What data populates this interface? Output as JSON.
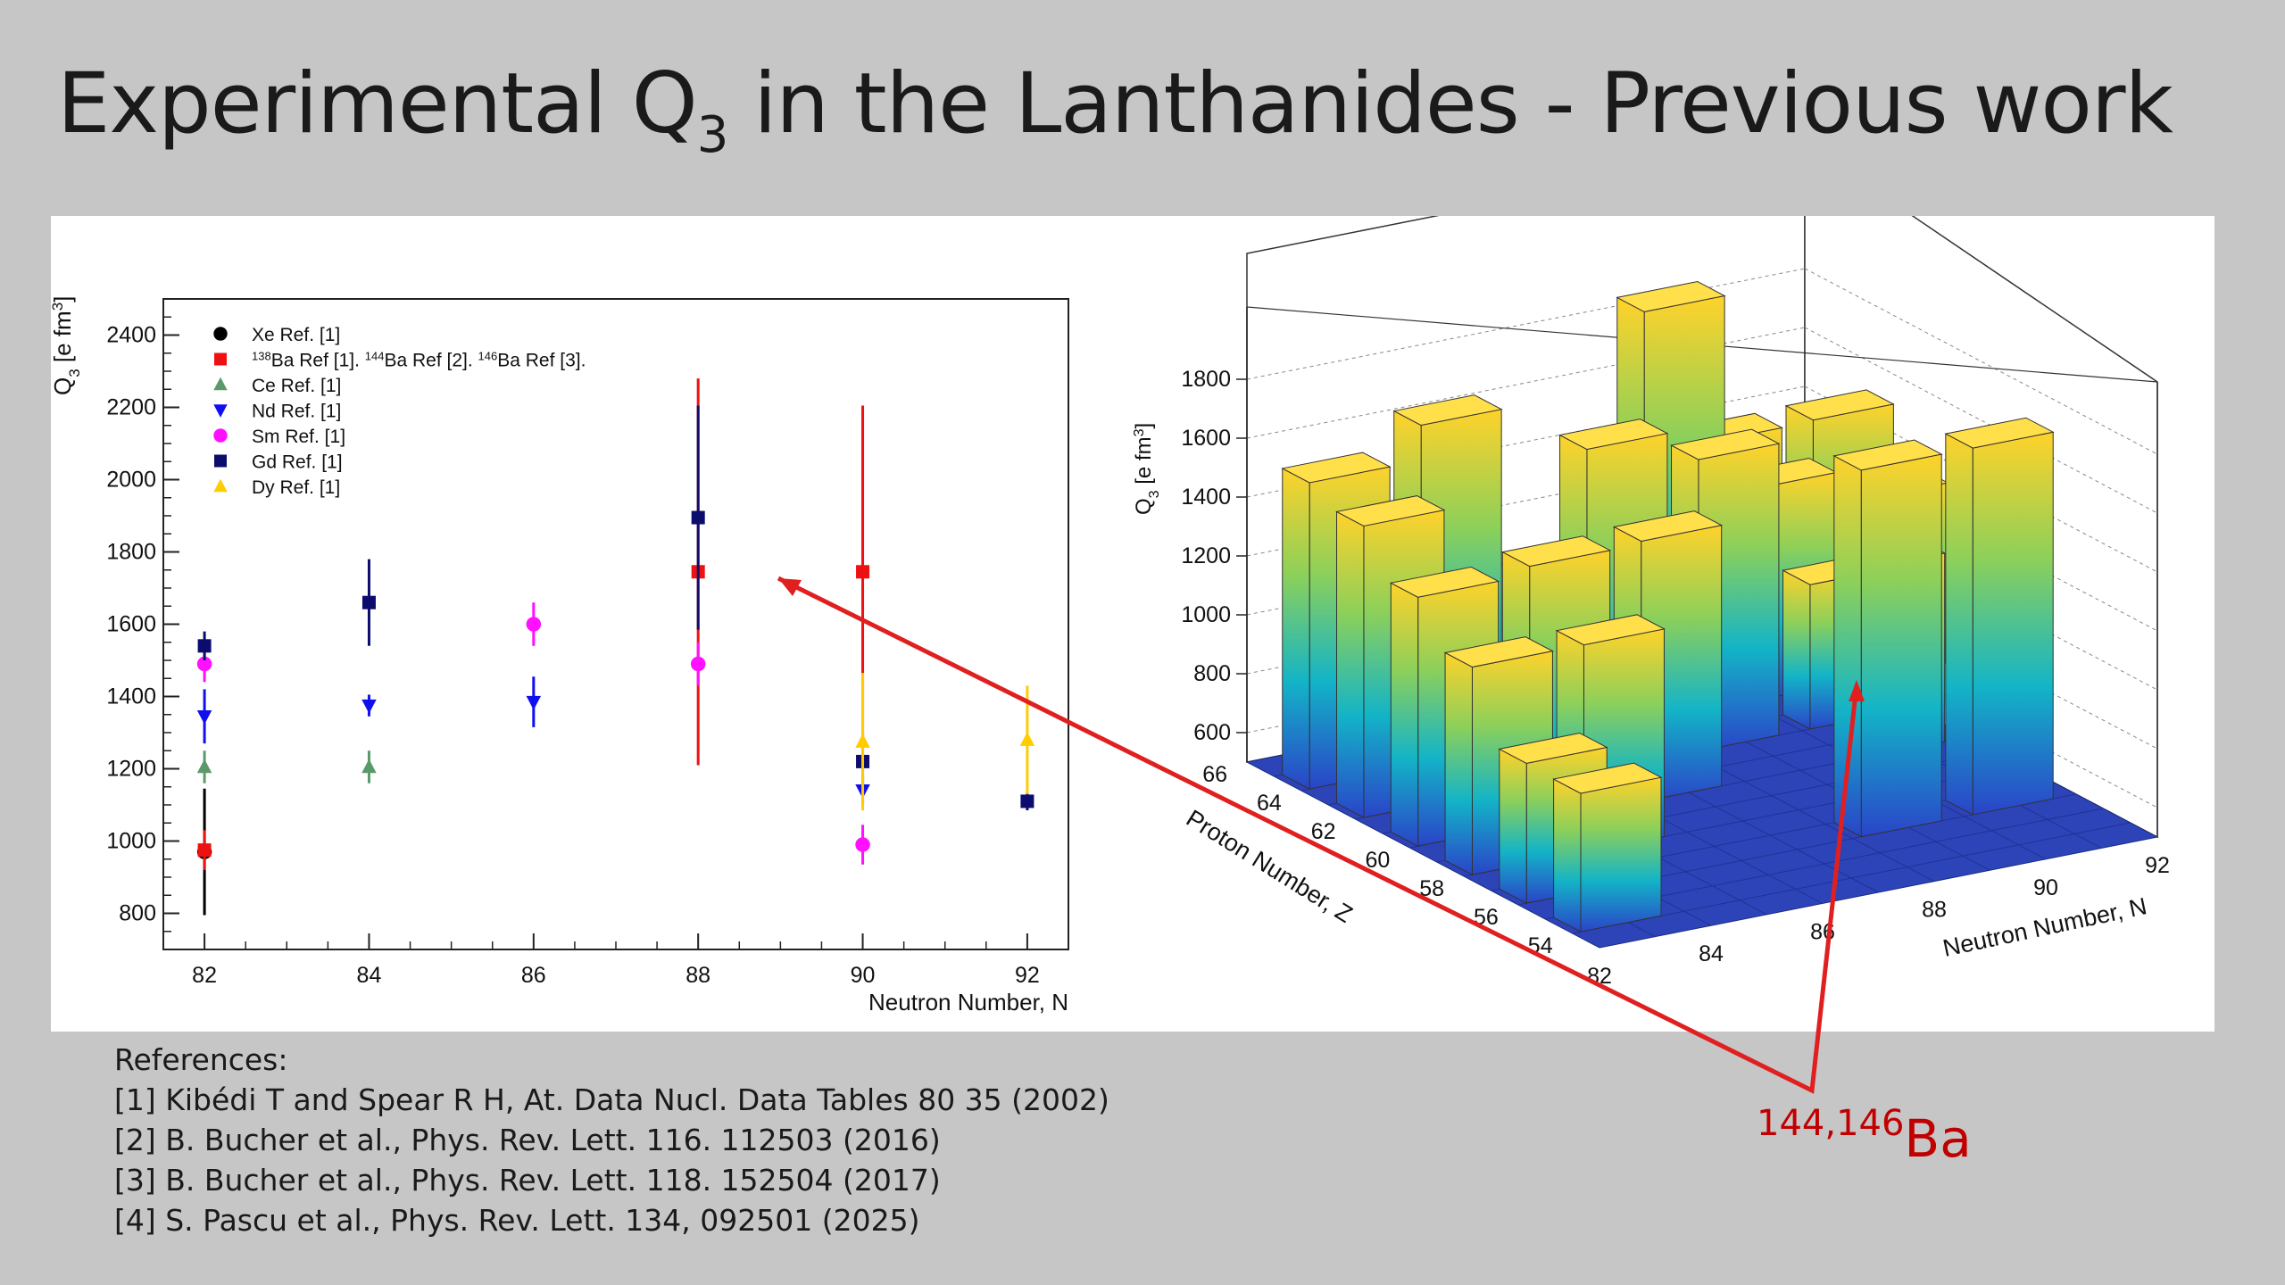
{
  "slide": {
    "title_main": "Experimental Q",
    "title_sub": "3",
    "title_rest": " in the Lanthanides - Previous work"
  },
  "references": {
    "heading": "References:",
    "items": [
      "[1]  Kibédi T and Spear R H, At. Data Nucl. Data Tables 80 35 (2002)",
      "[2] B. Bucher et al., Phys. Rev. Lett. 116. 112503 (2016)",
      "[3] B. Bucher et al., Phys. Rev. Lett. 118. 152504 (2017)",
      "[4] S. Pascu et al., Phys. Rev. Lett. 134, 092501 (2025)"
    ]
  },
  "annotation": {
    "mass": "144,146",
    "element": "Ba",
    "color": "#e02020"
  },
  "chart_data": [
    {
      "type": "scatter",
      "xlabel": "Neutron Number, N",
      "ylabel": "Q3 [e fm3]",
      "xlim": [
        81.5,
        92.5
      ],
      "ylim": [
        700,
        2500
      ],
      "x_ticks": [
        "82",
        "84",
        "86",
        "88",
        "90",
        "92"
      ],
      "y_ticks": [
        "800",
        "1000",
        "1200",
        "1400",
        "1600",
        "1800",
        "2000",
        "2200",
        "2400"
      ],
      "legend_position": "top-left",
      "legend": [
        {
          "label": "Xe Ref. [1]",
          "color": "#000000",
          "marker": "circle"
        },
        {
          "label": "138Ba Ref [1]. 144Ba Ref [2]. 146Ba Ref [3].",
          "color": "#ee1111",
          "marker": "square"
        },
        {
          "label": "Ce Ref. [1]",
          "color": "#5a9a6a",
          "marker": "triangle-up"
        },
        {
          "label": "Nd Ref. [1]",
          "color": "#1010ee",
          "marker": "triangle-down"
        },
        {
          "label": "Sm Ref. [1]",
          "color": "#ff10ff",
          "marker": "circle"
        },
        {
          "label": "Gd Ref. [1]",
          "color": "#0c0c6e",
          "marker": "square"
        },
        {
          "label": "Dy Ref. [1]",
          "color": "#ffcc00",
          "marker": "triangle-up"
        }
      ],
      "series": [
        {
          "name": "Xe",
          "color": "#000000",
          "marker": "circle",
          "points": [
            {
              "x": 82,
              "y": 970,
              "err": 175
            }
          ]
        },
        {
          "name": "Ba",
          "color": "#ee1111",
          "marker": "square",
          "points": [
            {
              "x": 82,
              "y": 975,
              "err": 55
            },
            {
              "x": 88,
              "y": 1745,
              "err": 535
            },
            {
              "x": 90,
              "y": 1745,
              "err": 460
            }
          ]
        },
        {
          "name": "Ce",
          "color": "#5a9a6a",
          "marker": "triangle-up",
          "points": [
            {
              "x": 82,
              "y": 1205,
              "err": 45
            },
            {
              "x": 84,
              "y": 1205,
              "err": 45
            }
          ]
        },
        {
          "name": "Nd",
          "color": "#1010ee",
          "marker": "triangle-down",
          "points": [
            {
              "x": 82,
              "y": 1345,
              "err": 75
            },
            {
              "x": 84,
              "y": 1375,
              "err": 30
            },
            {
              "x": 86,
              "y": 1385,
              "err": 70
            },
            {
              "x": 90,
              "y": 1140,
              "err": 40
            }
          ]
        },
        {
          "name": "Sm",
          "color": "#ff10ff",
          "marker": "circle",
          "points": [
            {
              "x": 82,
              "y": 1490,
              "err": 50
            },
            {
              "x": 86,
              "y": 1600,
              "err": 60
            },
            {
              "x": 88,
              "y": 1490,
              "err": 60
            },
            {
              "x": 90,
              "y": 990,
              "err": 55
            }
          ]
        },
        {
          "name": "Gd",
          "color": "#0c0c6e",
          "marker": "square",
          "points": [
            {
              "x": 82,
              "y": 1540,
              "err": 40
            },
            {
              "x": 84,
              "y": 1660,
              "err": 120
            },
            {
              "x": 88,
              "y": 1895,
              "err": 310
            },
            {
              "x": 90,
              "y": 1220,
              "err": 80
            },
            {
              "x": 92,
              "y": 1110,
              "err": 25
            }
          ]
        },
        {
          "name": "Dy",
          "color": "#ffcc00",
          "marker": "triangle-up",
          "points": [
            {
              "x": 90,
              "y": 1275,
              "err": 190
            },
            {
              "x": 92,
              "y": 1280,
              "err": 150
            }
          ]
        }
      ]
    },
    {
      "type": "bar3d",
      "xlabel": "Neutron Number, N",
      "ylabel": "Proton Number, Z",
      "zlabel": "Q3 [e fm3]",
      "x_ticks": [
        "82",
        "84",
        "86",
        "88",
        "90",
        "92"
      ],
      "y_ticks": [
        "54",
        "56",
        "58",
        "60",
        "62",
        "64",
        "66"
      ],
      "z_ticks": [
        "600",
        "800",
        "1000",
        "1200",
        "1400",
        "1600",
        "1800"
      ],
      "colorscale": [
        "#2a44c8",
        "#13b4c7",
        "#8cd05a",
        "#ffd22a"
      ],
      "bars": [
        {
          "N": 82,
          "Z": 54,
          "q3": 970
        },
        {
          "N": 82,
          "Z": 56,
          "q3": 975
        },
        {
          "N": 82,
          "Z": 58,
          "q3": 1205
        },
        {
          "N": 82,
          "Z": 60,
          "q3": 1345
        },
        {
          "N": 82,
          "Z": 62,
          "q3": 1490
        },
        {
          "N": 82,
          "Z": 64,
          "q3": 1540
        },
        {
          "N": 84,
          "Z": 58,
          "q3": 1205
        },
        {
          "N": 84,
          "Z": 60,
          "q3": 1375
        },
        {
          "N": 84,
          "Z": 64,
          "q3": 1660
        },
        {
          "N": 86,
          "Z": 60,
          "q3": 1385
        },
        {
          "N": 86,
          "Z": 62,
          "q3": 1600
        },
        {
          "N": 88,
          "Z": 56,
          "q3": 1745
        },
        {
          "N": 88,
          "Z": 62,
          "q3": 1490
        },
        {
          "N": 88,
          "Z": 64,
          "q3": 1895
        },
        {
          "N": 90,
          "Z": 56,
          "q3": 1745
        },
        {
          "N": 90,
          "Z": 60,
          "q3": 1140
        },
        {
          "N": 90,
          "Z": 62,
          "q3": 990
        },
        {
          "N": 90,
          "Z": 64,
          "q3": 1220
        },
        {
          "N": 90,
          "Z": 66,
          "q3": 1275
        },
        {
          "N": 92,
          "Z": 64,
          "q3": 1110
        },
        {
          "N": 92,
          "Z": 66,
          "q3": 1280
        }
      ]
    }
  ]
}
